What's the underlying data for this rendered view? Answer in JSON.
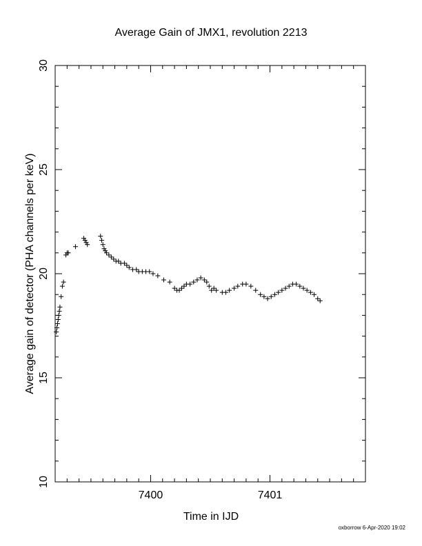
{
  "chart_data": {
    "type": "scatter",
    "title": "Average Gain of JMX1, revolution 2213",
    "xlabel": "Time in IJD",
    "ylabel": "Average gain of detector (PHA channels per keV)",
    "xlim": [
      7399.2,
      7401.8
    ],
    "ylim": [
      10,
      30
    ],
    "xticks": [
      7400,
      7401
    ],
    "yticks": [
      10,
      15,
      20,
      25,
      30
    ],
    "marker": "plus",
    "footer": "oxborrow  6-Apr-2020 19:02",
    "series": [
      {
        "x": [
          7399.21,
          7399.215,
          7399.22,
          7399.225,
          7399.23,
          7399.235,
          7399.24,
          7399.25,
          7399.26,
          7399.27,
          7399.29,
          7399.3,
          7399.31,
          7399.37,
          7399.44,
          7399.45,
          7399.46,
          7399.47,
          7399.58,
          7399.59,
          7399.6,
          7399.61,
          7399.62,
          7399.63,
          7399.65,
          7399.67,
          7399.69,
          7399.71,
          7399.73,
          7399.75,
          7399.78,
          7399.8,
          7399.82,
          7399.85,
          7399.88,
          7399.9,
          7399.93,
          7399.96,
          7399.99,
          7400.02,
          7400.06,
          7400.11,
          7400.16,
          7400.2,
          7400.22,
          7400.24,
          7400.26,
          7400.28,
          7400.3,
          7400.33,
          7400.36,
          7400.39,
          7400.42,
          7400.45,
          7400.47,
          7400.49,
          7400.51,
          7400.53,
          7400.55,
          7400.6,
          7400.63,
          7400.66,
          7400.7,
          7400.73,
          7400.77,
          7400.8,
          7400.84,
          7400.88,
          7400.92,
          7400.95,
          7400.98,
          7401.01,
          7401.04,
          7401.07,
          7401.1,
          7401.13,
          7401.16,
          7401.19,
          7401.22,
          7401.25,
          7401.28,
          7401.31,
          7401.34,
          7401.37,
          7401.4,
          7401.42
        ],
        "y": [
          17.2,
          17.4,
          17.6,
          17.8,
          18.0,
          18.2,
          18.4,
          18.9,
          19.4,
          19.6,
          20.9,
          21.0,
          21.0,
          21.3,
          21.7,
          21.6,
          21.5,
          21.4,
          21.8,
          21.6,
          21.4,
          21.2,
          21.1,
          21.0,
          20.9,
          20.8,
          20.7,
          20.6,
          20.6,
          20.5,
          20.5,
          20.4,
          20.3,
          20.2,
          20.2,
          20.1,
          20.1,
          20.1,
          20.1,
          20.0,
          19.9,
          19.7,
          19.6,
          19.3,
          19.2,
          19.2,
          19.3,
          19.4,
          19.5,
          19.5,
          19.6,
          19.7,
          19.8,
          19.7,
          19.6,
          19.4,
          19.2,
          19.3,
          19.2,
          19.1,
          19.1,
          19.2,
          19.3,
          19.4,
          19.5,
          19.5,
          19.4,
          19.2,
          19.0,
          18.9,
          18.8,
          18.9,
          19.0,
          19.1,
          19.2,
          19.3,
          19.4,
          19.5,
          19.5,
          19.4,
          19.3,
          19.2,
          19.1,
          19.0,
          18.8,
          18.7
        ]
      }
    ]
  }
}
